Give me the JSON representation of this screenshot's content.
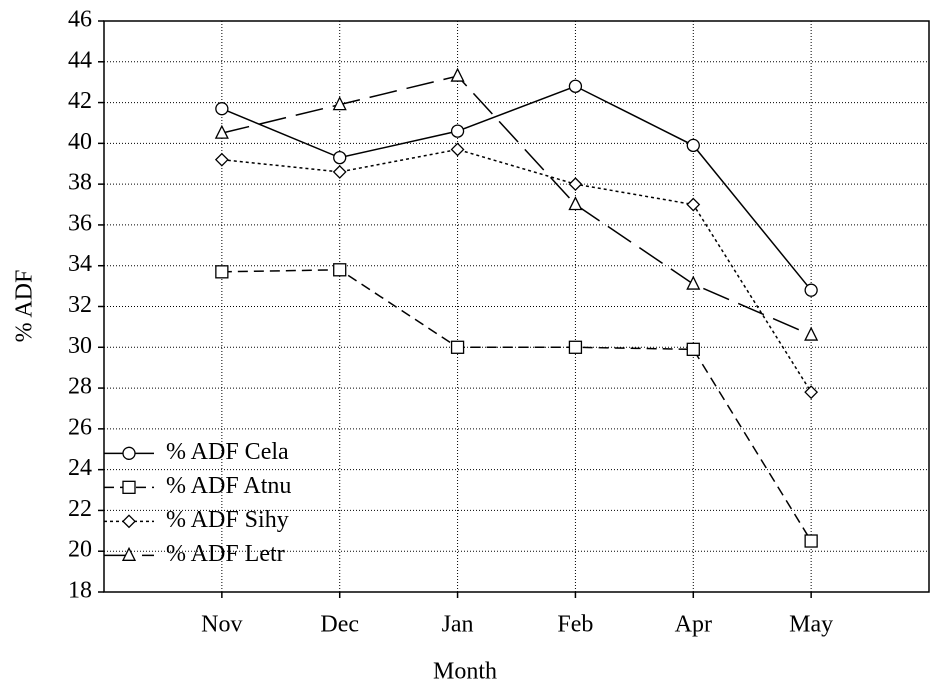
{
  "chart_data": {
    "type": "line",
    "x_label": "Month",
    "y_label": "% ADF",
    "categories": [
      "Nov",
      "Dec",
      "Jan",
      "Feb",
      "Apr",
      "May"
    ],
    "series": [
      {
        "name": "% ADF Cela",
        "color": "#000000",
        "marker": "circle",
        "dash": "solid",
        "values": [
          41.7,
          39.3,
          40.6,
          42.8,
          39.9,
          32.8
        ]
      },
      {
        "name": "% ADF Atnu",
        "color": "#000000",
        "marker": "square",
        "dash": "dashed",
        "values": [
          33.7,
          33.8,
          30.0,
          30.0,
          29.9,
          20.5
        ]
      },
      {
        "name": "% ADF Sihy",
        "color": "#000000",
        "marker": "diamond",
        "dash": "dotted",
        "values": [
          39.2,
          38.6,
          39.7,
          38.0,
          37.0,
          27.8
        ]
      },
      {
        "name": "% ADF Letr",
        "color": "#000000",
        "marker": "triangle",
        "dash": "longdash",
        "values": [
          40.5,
          41.9,
          43.3,
          37.0,
          33.1,
          30.6
        ]
      }
    ],
    "ylim": [
      18,
      46
    ],
    "yticks": [
      18,
      20,
      22,
      24,
      26,
      28,
      30,
      32,
      34,
      36,
      38,
      40,
      42,
      44,
      46
    ],
    "grid": true,
    "legend": "lower left"
  }
}
